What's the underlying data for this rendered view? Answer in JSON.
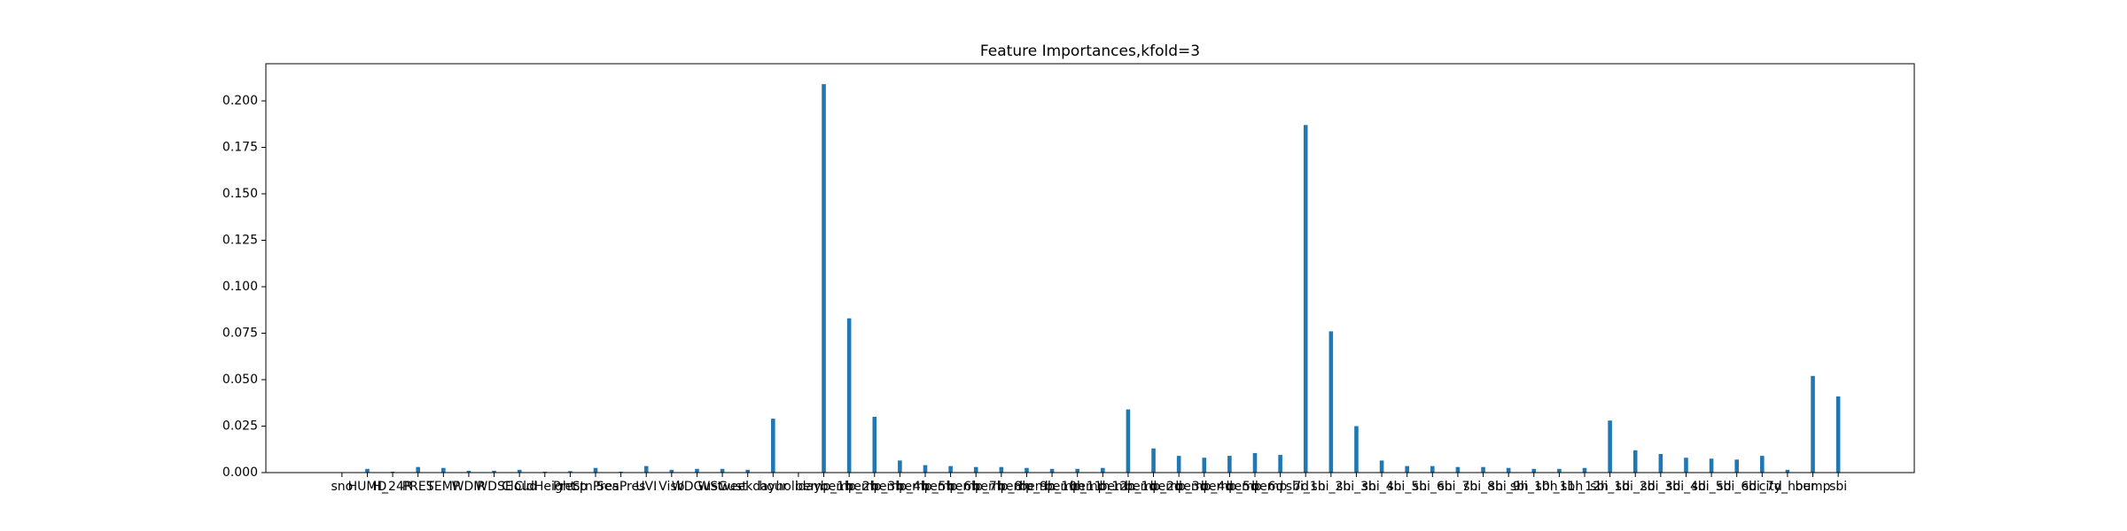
{
  "chart_data": {
    "type": "bar",
    "title": "Feature Importances,kfold=3",
    "categories": [
      "sno",
      "HUMD",
      "H_24R",
      "PRES",
      "TEMP",
      "WDIR",
      "WDSE",
      "Cloud",
      "CldHeight",
      "Precp",
      "StnPres",
      "SeaPres",
      "UVI",
      "Visb",
      "WDGust",
      "WSGust",
      "weekday",
      "hour",
      "holiday",
      "bemp_1h",
      "bemp_2h",
      "bemp_3h",
      "bemp_4h",
      "bemp_5h",
      "bemp_6h",
      "bemp_7h",
      "bemp_8h",
      "bemp_9h",
      "bemp_10h",
      "bemp_11h",
      "bemp_12h",
      "bemp_1d",
      "bemp_2d",
      "bemp_3d",
      "bemp_4d",
      "bemp_5d",
      "bemp_6d",
      "bemp_7d",
      "sbi_1h",
      "sbi_2h",
      "sbi_3h",
      "sbi_4h",
      "sbi_5h",
      "sbi_6h",
      "sbi_7h",
      "sbi_8h",
      "sbi_9h",
      "sbi_10h",
      "sbi_11h",
      "sbi_12h",
      "sbi_1d",
      "sbi_2d",
      "sbi_3d",
      "sbi_4d",
      "sbi_5d",
      "sbi_6d",
      "sbi_7d",
      "city_hour",
      "bemp",
      "sbi"
    ],
    "values": [
      0,
      0.002,
      0.0005,
      0.003,
      0.0025,
      0.001,
      0.001,
      0.0015,
      0.0005,
      0.0008,
      0.0025,
      0.0005,
      0.0035,
      0.0015,
      0.002,
      0.002,
      0.0015,
      0.029,
      0.0002,
      0.209,
      0.083,
      0.03,
      0.0065,
      0.004,
      0.0035,
      0.003,
      0.003,
      0.0025,
      0.002,
      0.002,
      0.0025,
      0.034,
      0.013,
      0.009,
      0.008,
      0.009,
      0.0105,
      0.0095,
      0.187,
      0.076,
      0.025,
      0.0065,
      0.0035,
      0.0035,
      0.003,
      0.003,
      0.0025,
      0.002,
      0.002,
      0.0025,
      0.028,
      0.012,
      0.01,
      0.008,
      0.0075,
      0.007,
      0.009,
      0.0015,
      0.052,
      0.041
    ],
    "color": "#1f77b4",
    "ylim": [
      0,
      0.22
    ],
    "yticks": [
      {
        "value": 0,
        "label": "0.000"
      },
      0.025,
      {
        "value": 0.05,
        "label": "0.050"
      },
      0.075,
      {
        "value": 0.1,
        "label": "0.100"
      },
      0.125,
      {
        "value": 0.15,
        "label": "0.150"
      },
      0.175,
      {
        "value": 0.2,
        "label": "0.200"
      }
    ]
  }
}
